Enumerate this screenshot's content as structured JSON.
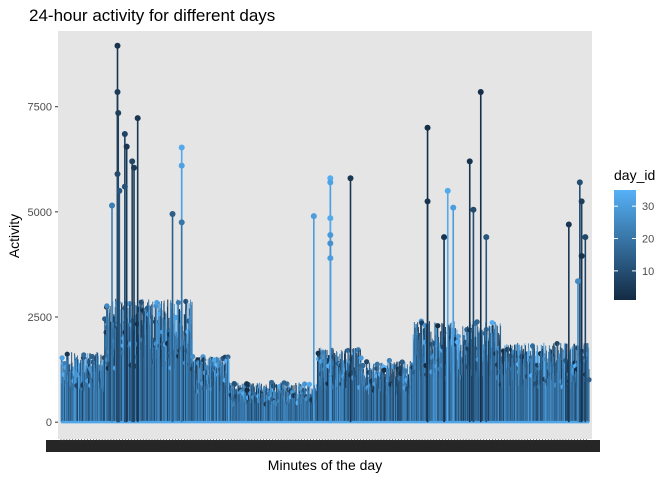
{
  "chart_data": {
    "type": "line",
    "subtype": "lollipop",
    "title": "24-hour activity for different days",
    "xlabel": "Minutes of the day",
    "ylabel": "Activity",
    "xlim": [
      1,
      1440
    ],
    "ylim": [
      -400,
      9300
    ],
    "y_ticks": [
      0,
      2500,
      5000,
      7500
    ],
    "x_tick_labels_note": "1440 overlapping tick labels rendered illegibly along the x axis",
    "grid": false,
    "panel_background": "#e5e5e5",
    "legend": {
      "title": "day_id",
      "placement": "right",
      "type": "colorbar",
      "range": [
        1,
        35
      ],
      "ticks": [
        10,
        20,
        30
      ],
      "low_color": "#132b43",
      "high_color": "#56b1f7"
    },
    "color_variable": "day_id",
    "highlighted_peaks": [
      {
        "minute": 155,
        "day_id": 3,
        "value": 8950
      },
      {
        "minute": 155,
        "day_id": 5,
        "value": 7850
      },
      {
        "minute": 157,
        "day_id": 6,
        "value": 7350
      },
      {
        "minute": 210,
        "day_id": 4,
        "value": 7230
      },
      {
        "minute": 175,
        "day_id": 7,
        "value": 6850
      },
      {
        "minute": 180,
        "day_id": 4,
        "value": 6550
      },
      {
        "minute": 330,
        "day_id": 33,
        "value": 6530
      },
      {
        "minute": 195,
        "day_id": 8,
        "value": 6200
      },
      {
        "minute": 330,
        "day_id": 31,
        "value": 6100
      },
      {
        "minute": 200,
        "day_id": 5,
        "value": 6050
      },
      {
        "minute": 155,
        "day_id": 9,
        "value": 5900
      },
      {
        "minute": 175,
        "day_id": 11,
        "value": 5600
      },
      {
        "minute": 160,
        "day_id": 12,
        "value": 5500
      },
      {
        "minute": 140,
        "day_id": 22,
        "value": 5150
      },
      {
        "minute": 305,
        "day_id": 14,
        "value": 4950
      },
      {
        "minute": 330,
        "day_id": 20,
        "value": 4750
      },
      {
        "minute": 690,
        "day_id": 30,
        "value": 4900
      },
      {
        "minute": 735,
        "day_id": 34,
        "value": 5800
      },
      {
        "minute": 735,
        "day_id": 31,
        "value": 5700
      },
      {
        "minute": 735,
        "day_id": 33,
        "value": 4850
      },
      {
        "minute": 735,
        "day_id": 29,
        "value": 4450
      },
      {
        "minute": 735,
        "day_id": 27,
        "value": 4250
      },
      {
        "minute": 735,
        "day_id": 30,
        "value": 3900
      },
      {
        "minute": 790,
        "day_id": 4,
        "value": 5800
      },
      {
        "minute": 1000,
        "day_id": 2,
        "value": 7000
      },
      {
        "minute": 1000,
        "day_id": 3,
        "value": 5250
      },
      {
        "minute": 1055,
        "day_id": 33,
        "value": 5500
      },
      {
        "minute": 1070,
        "day_id": 30,
        "value": 5100
      },
      {
        "minute": 1115,
        "day_id": 3,
        "value": 6200
      },
      {
        "minute": 1125,
        "day_id": 9,
        "value": 5050
      },
      {
        "minute": 1145,
        "day_id": 2,
        "value": 7850
      },
      {
        "minute": 1045,
        "day_id": 3,
        "value": 4400
      },
      {
        "minute": 1160,
        "day_id": 12,
        "value": 4400
      },
      {
        "minute": 1385,
        "day_id": 4,
        "value": 4700
      },
      {
        "minute": 1415,
        "day_id": 10,
        "value": 5700
      },
      {
        "minute": 1420,
        "day_id": 6,
        "value": 5250
      },
      {
        "minute": 1430,
        "day_id": 8,
        "value": 4400
      },
      {
        "minute": 1420,
        "day_id": 3,
        "value": 3950
      },
      {
        "minute": 1410,
        "day_id": 25,
        "value": 3350
      }
    ]
  }
}
